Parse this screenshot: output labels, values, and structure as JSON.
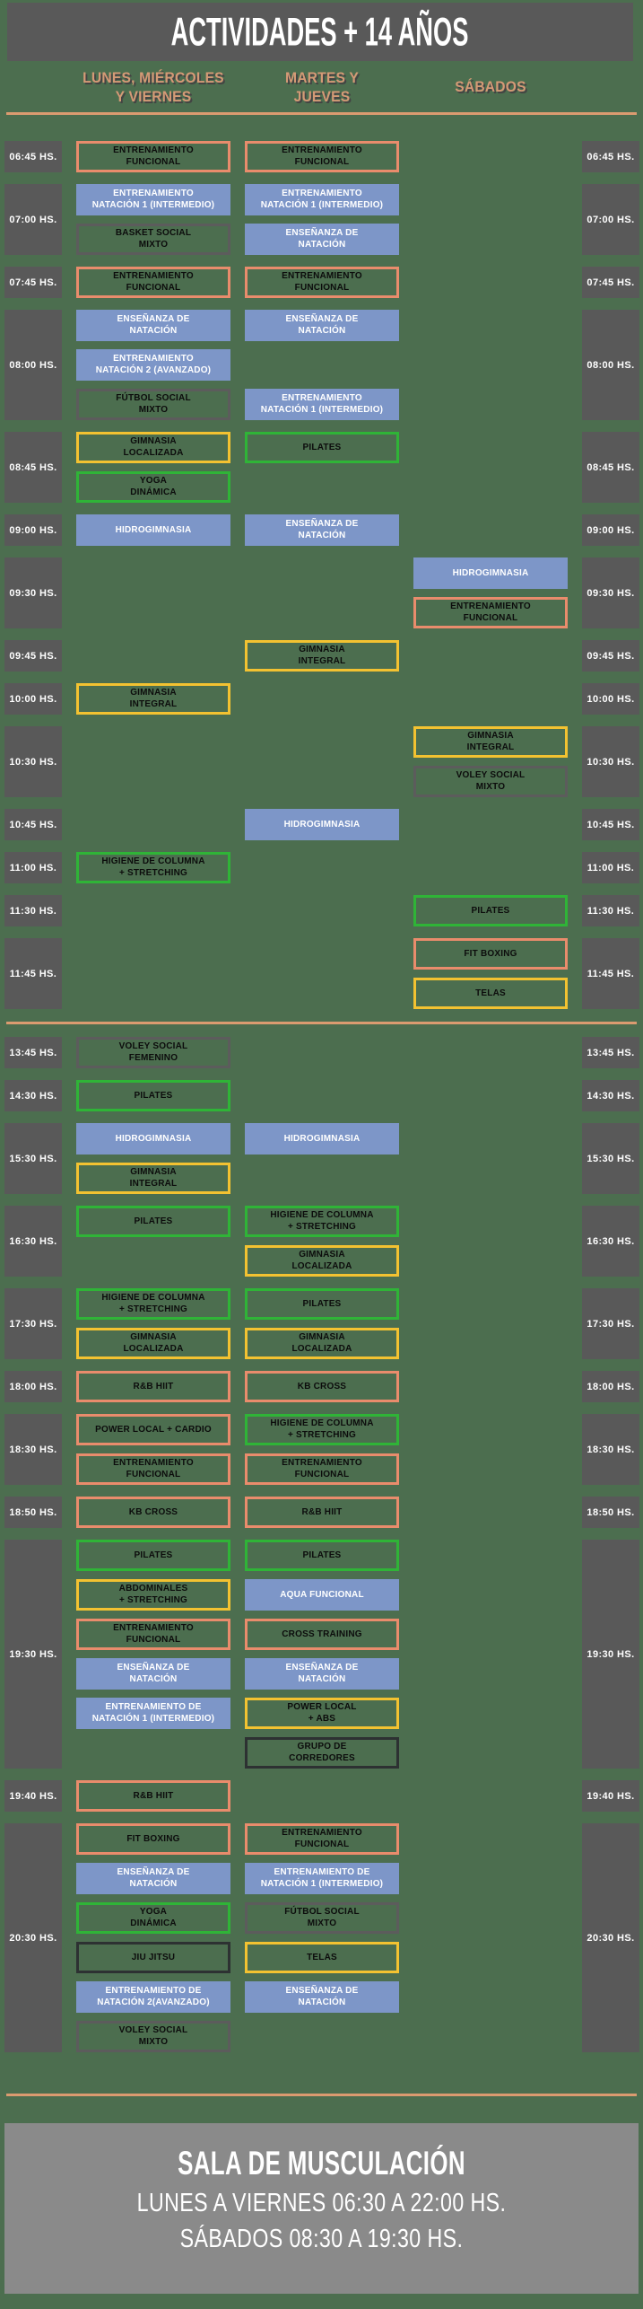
{
  "title": "ACTIVIDADES + 14 AÑOS",
  "columns": [
    {
      "id": "lmv",
      "label": "LUNES, MIÉRCOLES\nY VIERNES"
    },
    {
      "id": "mj",
      "label": "MARTES Y\nJUEVES"
    },
    {
      "id": "sab",
      "label": "SÁBADOS"
    }
  ],
  "palette": {
    "background": "#4c6e4f",
    "header_bar": "#595959",
    "time_box": "#595959",
    "accent_heading_text": "#d49a76",
    "divider_line": "#db9b70",
    "chip_blue_fill": "#7d96c8",
    "chip_salmon_border": "#e98c6c",
    "chip_yellow_border": "#f3c231",
    "chip_green_border": "#2fb437",
    "chip_gray_border": "#5c5c5c",
    "chip_dark_border": "#2d3132",
    "footer_box": "#8a8a8a"
  },
  "sections": [
    {
      "name": "morning",
      "groups": [
        {
          "time": "06:45 HS.",
          "slots": [
            {
              "lmv": {
                "label": "ENTRENAMIENTO\nFUNCIONAL",
                "style": "salmon"
              },
              "mj": {
                "label": "ENTRENAMIENTO\nFUNCIONAL",
                "style": "salmon"
              }
            }
          ]
        },
        {
          "time": "07:00 HS.",
          "slots": [
            {
              "lmv": {
                "label": "ENTRENAMIENTO\nNATACIÓN 1 (INTERMEDIO)",
                "style": "blue"
              },
              "mj": {
                "label": "ENTRENAMIENTO\nNATACIÓN 1 (INTERMEDIO)",
                "style": "blue"
              }
            },
            {
              "lmv": {
                "label": "BASKET SOCIAL\nMIXTO",
                "style": "gray"
              },
              "mj": {
                "label": "ENSEÑANZA DE\nNATACIÓN",
                "style": "blue"
              }
            }
          ]
        },
        {
          "time": "07:45 HS.",
          "slots": [
            {
              "lmv": {
                "label": "ENTRENAMIENTO\nFUNCIONAL",
                "style": "salmon"
              },
              "mj": {
                "label": "ENTRENAMIENTO\nFUNCIONAL",
                "style": "salmon"
              }
            }
          ]
        },
        {
          "time": "08:00 HS.",
          "slots": [
            {
              "lmv": {
                "label": "ENSEÑANZA DE\nNATACIÓN",
                "style": "blue"
              },
              "mj": {
                "label": "ENSEÑANZA DE\nNATACIÓN",
                "style": "blue"
              }
            },
            {
              "lmv": {
                "label": "ENTRENAMIENTO\nNATACIÓN 2 (AVANZADO)",
                "style": "blue"
              }
            },
            {
              "lmv": {
                "label": "FÚTBOL SOCIAL\nMIXTO",
                "style": "gray"
              },
              "mj": {
                "label": "ENTRENAMIENTO\nNATACIÓN 1 (INTERMEDIO)",
                "style": "blue"
              }
            }
          ]
        },
        {
          "time": "08:45 HS.",
          "slots": [
            {
              "lmv": {
                "label": "GIMNASIA\nLOCALIZADA",
                "style": "yellow"
              },
              "mj": {
                "label": "PILATES",
                "style": "green"
              }
            },
            {
              "lmv": {
                "label": "YOGA\nDINÁMICA",
                "style": "green"
              }
            }
          ]
        },
        {
          "time": "09:00 HS.",
          "slots": [
            {
              "lmv": {
                "label": "HIDROGIMNASIA",
                "style": "blue"
              },
              "mj": {
                "label": "ENSEÑANZA DE\nNATACIÓN",
                "style": "blue"
              }
            }
          ]
        },
        {
          "time": "09:30 HS.",
          "slots": [
            {
              "sab": {
                "label": "HIDROGIMNASIA",
                "style": "blue"
              }
            },
            {
              "sab": {
                "label": "ENTRENAMIENTO\nFUNCIONAL",
                "style": "salmon"
              }
            }
          ]
        },
        {
          "time": "09:45 HS.",
          "slots": [
            {
              "mj": {
                "label": "GIMNASIA\nINTEGRAL",
                "style": "yellow"
              }
            }
          ]
        },
        {
          "time": "10:00 HS.",
          "slots": [
            {
              "lmv": {
                "label": "GIMNASIA\nINTEGRAL",
                "style": "yellow"
              }
            }
          ]
        },
        {
          "time": "10:30 HS.",
          "slots": [
            {
              "sab": {
                "label": "GIMNASIA\nINTEGRAL",
                "style": "yellow"
              }
            },
            {
              "sab": {
                "label": "VOLEY SOCIAL\nMIXTO",
                "style": "gray"
              }
            }
          ]
        },
        {
          "time": "10:45 HS.",
          "slots": [
            {
              "mj": {
                "label": "HIDROGIMNASIA",
                "style": "blue"
              }
            }
          ]
        },
        {
          "time": "11:00 HS.",
          "slots": [
            {
              "lmv": {
                "label": "HIGIENE DE COLUMNA\n+ STRETCHING",
                "style": "green"
              }
            }
          ]
        },
        {
          "time": "11:30 HS.",
          "slots": [
            {
              "sab": {
                "label": "PILATES",
                "style": "green"
              }
            }
          ]
        },
        {
          "time": "11:45 HS.",
          "slots": [
            {
              "sab": {
                "label": "FIT BOXING",
                "style": "salmon"
              }
            },
            {
              "sab": {
                "label": "TELAS",
                "style": "yellow"
              }
            }
          ]
        }
      ]
    },
    {
      "name": "afternoon",
      "groups": [
        {
          "time": "13:45 HS.",
          "slots": [
            {
              "lmv": {
                "label": "VOLEY SOCIAL\nFEMENINO",
                "style": "gray"
              }
            }
          ]
        },
        {
          "time": "14:30 HS.",
          "slots": [
            {
              "lmv": {
                "label": "PILATES",
                "style": "green"
              }
            }
          ]
        },
        {
          "time": "15:30 HS.",
          "slots": [
            {
              "lmv": {
                "label": "HIDROGIMNASIA",
                "style": "blue"
              },
              "mj": {
                "label": "HIDROGIMNASIA",
                "style": "blue"
              }
            },
            {
              "lmv": {
                "label": "GIMNASIA\nINTEGRAL",
                "style": "yellow"
              }
            }
          ]
        },
        {
          "time": "16:30 HS.",
          "slots": [
            {
              "lmv": {
                "label": "PILATES",
                "style": "green"
              },
              "mj": {
                "label": "HIGIENE DE COLUMNA\n+ STRETCHING",
                "style": "green"
              }
            },
            {
              "mj": {
                "label": "GIMNASIA\nLOCALIZADA",
                "style": "yellow"
              }
            }
          ]
        },
        {
          "time": "17:30 HS.",
          "slots": [
            {
              "lmv": {
                "label": "HIGIENE DE COLUMNA\n+ STRETCHING",
                "style": "green"
              },
              "mj": {
                "label": "PILATES",
                "style": "green"
              }
            },
            {
              "lmv": {
                "label": "GIMNASIA\nLOCALIZADA",
                "style": "yellow"
              },
              "mj": {
                "label": "GIMNASIA\nLOCALIZADA",
                "style": "yellow"
              }
            }
          ]
        },
        {
          "time": "18:00 HS.",
          "slots": [
            {
              "lmv": {
                "label": "R&B HIIT",
                "style": "salmon"
              },
              "mj": {
                "label": "KB CROSS",
                "style": "salmon"
              }
            }
          ]
        },
        {
          "time": "18:30 HS.",
          "slots": [
            {
              "lmv": {
                "label": "POWER LOCAL + CARDIO",
                "style": "salmon"
              },
              "mj": {
                "label": "HIGIENE DE COLUMNA\n+ STRETCHING",
                "style": "green"
              }
            },
            {
              "lmv": {
                "label": "ENTRENAMIENTO\nFUNCIONAL",
                "style": "salmon"
              },
              "mj": {
                "label": "ENTRENAMIENTO\nFUNCIONAL",
                "style": "salmon"
              }
            }
          ]
        },
        {
          "time": "18:50 HS.",
          "slots": [
            {
              "lmv": {
                "label": "KB CROSS",
                "style": "salmon"
              },
              "mj": {
                "label": "R&B HIIT",
                "style": "salmon"
              }
            }
          ]
        },
        {
          "time": "19:30 HS.",
          "slots": [
            {
              "lmv": {
                "label": "PILATES",
                "style": "green"
              },
              "mj": {
                "label": "PILATES",
                "style": "green"
              }
            },
            {
              "lmv": {
                "label": "ABDOMINALES\n+ STRETCHING",
                "style": "yellow"
              },
              "mj": {
                "label": "AQUA FUNCIONAL",
                "style": "blue"
              }
            },
            {
              "lmv": {
                "label": "ENTRENAMIENTO\nFUNCIONAL",
                "style": "salmon"
              },
              "mj": {
                "label": "CROSS TRAINING",
                "style": "salmon"
              }
            },
            {
              "lmv": {
                "label": "ENSEÑANZA DE\nNATACIÓN",
                "style": "blue"
              },
              "mj": {
                "label": "ENSEÑANZA DE\nNATACIÓN",
                "style": "blue"
              }
            },
            {
              "lmv": {
                "label": "ENTRENAMIENTO DE\nNATACIÓN 1 (INTERMEDIO)",
                "style": "blue"
              },
              "mj": {
                "label": "POWER LOCAL\n+ ABS",
                "style": "yellow"
              }
            },
            {
              "mj": {
                "label": "GRUPO DE\nCORREDORES",
                "style": "dark"
              }
            }
          ]
        },
        {
          "time": "19:40 HS.",
          "slots": [
            {
              "lmv": {
                "label": "R&B HIIT",
                "style": "salmon"
              }
            }
          ]
        },
        {
          "time": "20:30 HS.",
          "slots": [
            {
              "lmv": {
                "label": "FIT BOXING",
                "style": "salmon"
              },
              "mj": {
                "label": "ENTRENAMIENTO\nFUNCIONAL",
                "style": "salmon"
              }
            },
            {
              "lmv": {
                "label": "ENSEÑANZA DE\nNATACIÓN",
                "style": "blue"
              },
              "mj": {
                "label": "ENTRENAMIENTO DE\nNATACIÓN 1 (INTERMEDIO)",
                "style": "blue"
              }
            },
            {
              "lmv": {
                "label": "YOGA\nDINÁMICA",
                "style": "green"
              },
              "mj": {
                "label": "FÚTBOL SOCIAL\nMIXTO",
                "style": "gray"
              }
            },
            {
              "lmv": {
                "label": "JIU JITSU",
                "style": "dark"
              },
              "mj": {
                "label": "TELAS",
                "style": "yellow"
              }
            },
            {
              "lmv": {
                "label": "ENTRENAMIENTO DE\nNATACIÓN 2(AVANZADO)",
                "style": "blue"
              },
              "mj": {
                "label": "ENSEÑANZA DE\nNATACIÓN",
                "style": "blue"
              }
            },
            {
              "lmv": {
                "label": "VOLEY SOCIAL\nMIXTO",
                "style": "gray"
              }
            }
          ]
        }
      ]
    }
  ],
  "footer": {
    "title": "SALA DE MUSCULACIÓN",
    "weekday_hours": "LUNES A VIERNES 06:30 A 22:00 HS.",
    "saturday_hours": "SÁBADOS 08:30 A 19:30 HS."
  }
}
